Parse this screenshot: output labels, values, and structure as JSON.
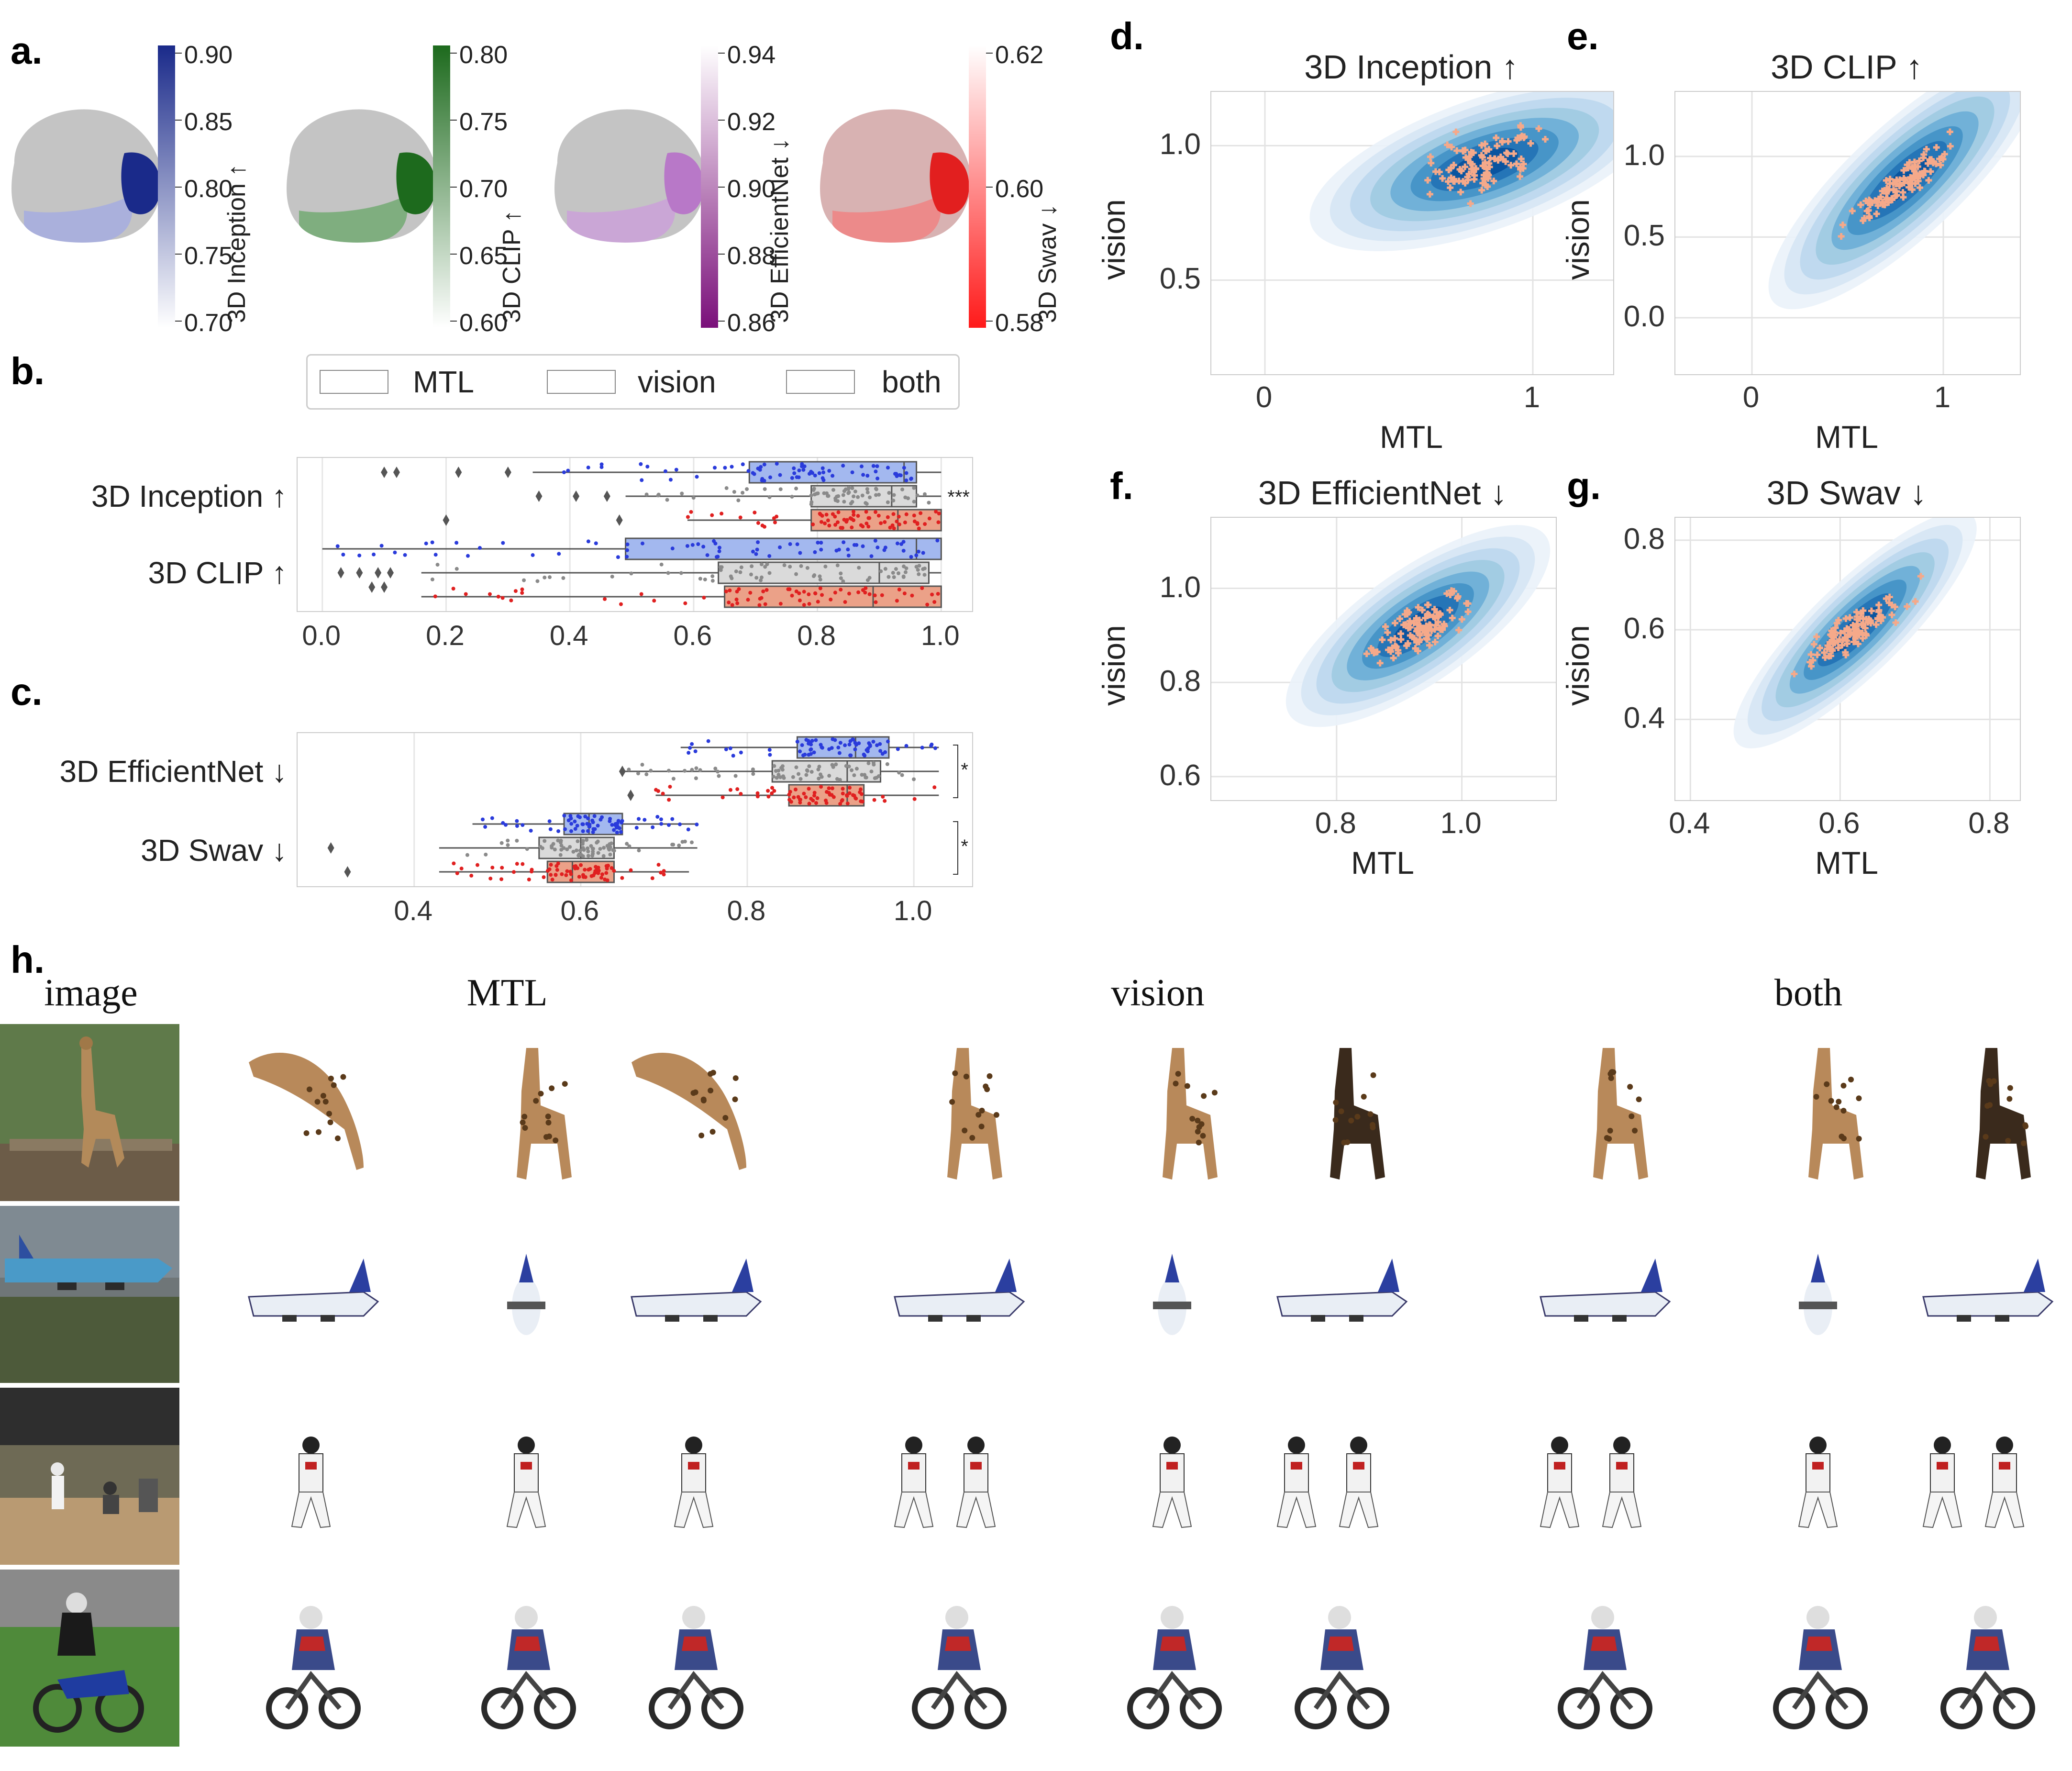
{
  "panel_labels": {
    "a": "a.",
    "b": "b.",
    "c": "c.",
    "d": "d.",
    "e": "e.",
    "f": "f.",
    "g": "g.",
    "h": "h."
  },
  "colorbars": [
    {
      "label": "3D Inception ↑",
      "ticks": [
        "0.90",
        "0.85",
        "0.80",
        "0.75",
        "0.70"
      ],
      "color_top": "#1a2a8a",
      "color_bottom": "#ffffff"
    },
    {
      "label": "3D CLIP ↑",
      "ticks": [
        "0.80",
        "0.75",
        "0.70",
        "0.65",
        "0.60"
      ],
      "color_top": "#1d6a1d",
      "color_bottom": "#ffffff"
    },
    {
      "label": "3D EfficientNet ↓",
      "ticks": [
        "0.94",
        "0.92",
        "0.90",
        "0.88",
        "0.86"
      ],
      "color_top": "#ffffff",
      "color_bottom": "#7a0f7a"
    },
    {
      "label": "3D Swav ↓",
      "ticks": [
        "0.62",
        "0.60",
        "0.58"
      ],
      "color_top": "#ffffff",
      "color_bottom": "#ff1a1a"
    }
  ],
  "legend": {
    "items": [
      {
        "label": "MTL",
        "color": "#9fb4f0"
      },
      {
        "label": "vision",
        "color": "#d8d8d8"
      },
      {
        "label": "both",
        "color": "#eca288"
      }
    ]
  },
  "boxplot_b": {
    "rows": [
      "3D Inception ↑",
      "3D CLIP ↑"
    ],
    "xticks": [
      "0.0",
      "0.2",
      "0.4",
      "0.6",
      "0.8",
      "1.0"
    ],
    "sig": [
      "***"
    ],
    "boxes": [
      {
        "row": 0,
        "group": "MTL",
        "q1": 0.69,
        "med": 0.94,
        "q3": 0.96,
        "wlo": 0.34,
        "whi": 1.0
      },
      {
        "row": 0,
        "group": "vision",
        "q1": 0.79,
        "med": 0.92,
        "q3": 0.96,
        "wlo": 0.49,
        "whi": 1.0
      },
      {
        "row": 0,
        "group": "both",
        "q1": 0.79,
        "med": 0.93,
        "q3": 1.0,
        "wlo": 0.59,
        "whi": 1.0
      },
      {
        "row": 1,
        "group": "MTL",
        "q1": 0.49,
        "med": 0.96,
        "q3": 1.0,
        "wlo": 0.0,
        "whi": 1.0
      },
      {
        "row": 1,
        "group": "vision",
        "q1": 0.64,
        "med": 0.9,
        "q3": 0.98,
        "wlo": 0.16,
        "whi": 1.0
      },
      {
        "row": 1,
        "group": "both",
        "q1": 0.65,
        "med": 0.89,
        "q3": 1.0,
        "wlo": 0.16,
        "whi": 1.0
      }
    ]
  },
  "boxplot_c": {
    "rows": [
      "3D EfficientNet ↓",
      "3D Swav ↓"
    ],
    "xticks": [
      "0.4",
      "0.6",
      "0.8",
      "1.0"
    ],
    "sig": [
      "*",
      "*"
    ],
    "boxes": [
      {
        "row": 0,
        "group": "MTL",
        "q1": 0.86,
        "med": 0.93,
        "q3": 0.97,
        "wlo": 0.72,
        "whi": 1.03
      },
      {
        "row": 0,
        "group": "vision",
        "q1": 0.83,
        "med": 0.92,
        "q3": 0.96,
        "wlo": 0.65,
        "whi": 1.03
      },
      {
        "row": 0,
        "group": "both",
        "q1": 0.85,
        "med": 0.92,
        "q3": 0.94,
        "wlo": 0.69,
        "whi": 1.03
      },
      {
        "row": 1,
        "group": "MTL",
        "q1": 0.58,
        "med": 0.61,
        "q3": 0.65,
        "wlo": 0.47,
        "whi": 0.74
      },
      {
        "row": 1,
        "group": "vision",
        "q1": 0.55,
        "med": 0.6,
        "q3": 0.64,
        "wlo": 0.43,
        "whi": 0.74
      },
      {
        "row": 1,
        "group": "both",
        "q1": 0.56,
        "med": 0.59,
        "q3": 0.64,
        "wlo": 0.43,
        "whi": 0.73
      }
    ]
  },
  "chart_data": [
    {
      "type": "scatter",
      "title": "3D Inception ↑",
      "xlabel": "MTL",
      "ylabel": "vision",
      "xticks": [
        "0",
        "1"
      ],
      "yticks": [
        "1.0",
        "0.5"
      ],
      "xlim": [
        -0.2,
        1.3
      ],
      "ylim": [
        0.15,
        1.2
      ]
    },
    {
      "type": "scatter",
      "title": "3D CLIP ↑",
      "xlabel": "MTL",
      "ylabel": "vision",
      "xticks": [
        "0",
        "1"
      ],
      "yticks": [
        "1.0",
        "0.5",
        "0.0"
      ],
      "xlim": [
        -0.4,
        1.4
      ],
      "ylim": [
        -0.35,
        1.4
      ]
    },
    {
      "type": "scatter",
      "title": "3D EfficientNet ↓",
      "xlabel": "MTL",
      "ylabel": "vision",
      "xticks": [
        "0.8",
        "1.0"
      ],
      "yticks": [
        "1.0",
        "0.8",
        "0.6"
      ],
      "xlim": [
        0.6,
        1.15
      ],
      "ylim": [
        0.55,
        1.15
      ]
    },
    {
      "type": "scatter",
      "title": "3D Swav ↓",
      "xlabel": "MTL",
      "ylabel": "vision",
      "xticks": [
        "0.4",
        "0.6",
        "0.8"
      ],
      "yticks": [
        "0.8",
        "0.6",
        "0.4"
      ],
      "xlim": [
        0.38,
        0.84
      ],
      "ylim": [
        0.22,
        0.85
      ]
    }
  ],
  "recon": {
    "headers": [
      "image",
      "MTL",
      "vision",
      "both"
    ]
  },
  "colors": {
    "blue": "#2a3bdb",
    "gray": "#8a8a8a",
    "red": "#e02020",
    "kde": "#2c7fb8",
    "pts": "#f5a98a"
  }
}
